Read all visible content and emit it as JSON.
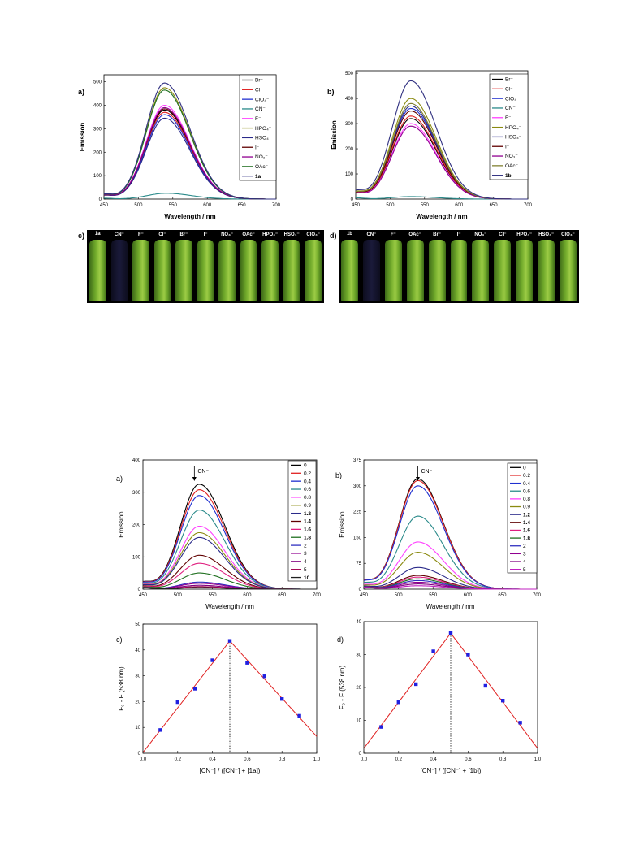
{
  "chart_data": [
    {
      "panel": "a)",
      "type": "line",
      "xlabel": "Wavelength / nm",
      "ylabel": "Emission",
      "xlim": [
        450,
        700
      ],
      "ylim": [
        0,
        530
      ],
      "xticks": [
        450,
        500,
        550,
        600,
        650,
        700
      ],
      "yticks": [
        0,
        100,
        200,
        300,
        400,
        500
      ],
      "legend": "top-right",
      "series": [
        {
          "name": "Br⁻",
          "color": "#000000",
          "peak_x": 538,
          "peak_y": 380
        },
        {
          "name": "Cl⁻",
          "color": "#e02020",
          "peak_x": 538,
          "peak_y": 370
        },
        {
          "name": "ClO₄⁻",
          "color": "#2030d0",
          "peak_x": 538,
          "peak_y": 360
        },
        {
          "name": "CN⁻",
          "color": "#2a8a8a",
          "peak_x": 540,
          "peak_y": 25
        },
        {
          "name": "F⁻",
          "color": "#ff40ff",
          "peak_x": 538,
          "peak_y": 400
        },
        {
          "name": "HPO₄⁻",
          "color": "#8a8a10",
          "peak_x": 538,
          "peak_y": 475
        },
        {
          "name": "HSO₄⁻",
          "color": "#2a2a8a",
          "peak_x": 538,
          "peak_y": 345
        },
        {
          "name": "I⁻",
          "color": "#600000",
          "peak_x": 538,
          "peak_y": 385
        },
        {
          "name": "NO₃⁻",
          "color": "#900090",
          "peak_x": 538,
          "peak_y": 390
        },
        {
          "name": "OAc⁻",
          "color": "#207020",
          "peak_x": 538,
          "peak_y": 465
        },
        {
          "name": "1a",
          "color": "#303080",
          "peak_x": 538,
          "peak_y": 495
        }
      ]
    },
    {
      "panel": "b)",
      "type": "line",
      "xlabel": "Wavelength / nm",
      "ylabel": "Emission",
      "xlim": [
        450,
        700
      ],
      "ylim": [
        0,
        510
      ],
      "xticks": [
        450,
        500,
        550,
        600,
        650,
        700
      ],
      "yticks": [
        0,
        100,
        200,
        300,
        400,
        500
      ],
      "legend": "top-right",
      "series": [
        {
          "name": "Br⁻",
          "color": "#000000",
          "peak_x": 530,
          "peak_y": 320
        },
        {
          "name": "Cl⁻",
          "color": "#e02020",
          "peak_x": 530,
          "peak_y": 330
        },
        {
          "name": "ClO₄⁻",
          "color": "#2030d0",
          "peak_x": 530,
          "peak_y": 360
        },
        {
          "name": "CN⁻",
          "color": "#2a8a8a",
          "peak_x": 530,
          "peak_y": 10
        },
        {
          "name": "F⁻",
          "color": "#ff40ff",
          "peak_x": 530,
          "peak_y": 300
        },
        {
          "name": "HPO₄⁻",
          "color": "#8a8a10",
          "peak_x": 530,
          "peak_y": 400
        },
        {
          "name": "HSO₄⁻",
          "color": "#2a2a8a",
          "peak_x": 530,
          "peak_y": 370
        },
        {
          "name": "I⁻",
          "color": "#600000",
          "peak_x": 530,
          "peak_y": 350
        },
        {
          "name": "NO₃⁻",
          "color": "#900090",
          "peak_x": 530,
          "peak_y": 290
        },
        {
          "name": "OAc⁻",
          "color": "#808030",
          "peak_x": 530,
          "peak_y": 380
        },
        {
          "name": "1b",
          "color": "#303080",
          "peak_x": 530,
          "peak_y": 470
        }
      ]
    },
    {
      "panel": "a)",
      "type": "line",
      "xlabel": "Wavelength / nm",
      "ylabel": "Emission",
      "xlim": [
        450,
        700
      ],
      "ylim": [
        0,
        400
      ],
      "xticks": [
        450,
        500,
        550,
        600,
        650,
        700
      ],
      "yticks": [
        0,
        100,
        200,
        300,
        400
      ],
      "legend": "top-right",
      "annotation": "CN⁻",
      "series": [
        {
          "name": "0",
          "color": "#000000",
          "peak_x": 531,
          "peak_y": 325
        },
        {
          "name": "0.2",
          "color": "#e02020",
          "peak_x": 531,
          "peak_y": 308
        },
        {
          "name": "0.4",
          "color": "#2030d0",
          "peak_x": 531,
          "peak_y": 290
        },
        {
          "name": "0.6",
          "color": "#2a8a8a",
          "peak_x": 531,
          "peak_y": 245
        },
        {
          "name": "0.8",
          "color": "#ff40ff",
          "peak_x": 531,
          "peak_y": 195
        },
        {
          "name": "0.9",
          "color": "#8a8a10",
          "peak_x": 531,
          "peak_y": 175
        },
        {
          "name": "1.2",
          "color": "#2a2a8a",
          "peak_x": 531,
          "peak_y": 160
        },
        {
          "name": "1.4",
          "color": "#600000",
          "peak_x": 531,
          "peak_y": 105
        },
        {
          "name": "1.6",
          "color": "#e02080",
          "peak_x": 531,
          "peak_y": 80
        },
        {
          "name": "1.8",
          "color": "#207020",
          "peak_x": 531,
          "peak_y": 50
        },
        {
          "name": "2",
          "color": "#3030c0",
          "peak_x": 531,
          "peak_y": 22
        },
        {
          "name": "3",
          "color": "#900090",
          "peak_x": 531,
          "peak_y": 18
        },
        {
          "name": "4",
          "color": "#800080",
          "peak_x": 531,
          "peak_y": 12
        },
        {
          "name": "5",
          "color": "#a00050",
          "peak_x": 531,
          "peak_y": 8
        },
        {
          "name": "10",
          "color": "#202020",
          "peak_x": 531,
          "peak_y": 5
        }
      ]
    },
    {
      "panel": "b)",
      "type": "line",
      "xlabel": "Wavelength / nm",
      "ylabel": "Emission",
      "xlim": [
        450,
        700
      ],
      "ylim": [
        0,
        375
      ],
      "xticks": [
        450,
        500,
        550,
        600,
        650,
        700
      ],
      "yticks": [
        0,
        75,
        150,
        225,
        300,
        375
      ],
      "legend": "top-right",
      "annotation": "CN⁻",
      "series": [
        {
          "name": "0",
          "color": "#000000",
          "peak_x": 528,
          "peak_y": 320
        },
        {
          "name": "0.2",
          "color": "#e02020",
          "peak_x": 528,
          "peak_y": 315
        },
        {
          "name": "0.4",
          "color": "#2030d0",
          "peak_x": 528,
          "peak_y": 300
        },
        {
          "name": "0.6",
          "color": "#2a8a8a",
          "peak_x": 528,
          "peak_y": 212
        },
        {
          "name": "0.8",
          "color": "#ff40ff",
          "peak_x": 528,
          "peak_y": 137
        },
        {
          "name": "0.9",
          "color": "#8a8a10",
          "peak_x": 528,
          "peak_y": 107
        },
        {
          "name": "1.2",
          "color": "#2a2a8a",
          "peak_x": 528,
          "peak_y": 63
        },
        {
          "name": "1.4",
          "color": "#600000",
          "peak_x": 528,
          "peak_y": 40
        },
        {
          "name": "1.6",
          "color": "#e02080",
          "peak_x": 528,
          "peak_y": 35
        },
        {
          "name": "1.8",
          "color": "#207020",
          "peak_x": 528,
          "peak_y": 30
        },
        {
          "name": "2",
          "color": "#3030c0",
          "peak_x": 528,
          "peak_y": 25
        },
        {
          "name": "3",
          "color": "#900090",
          "peak_x": 528,
          "peak_y": 20
        },
        {
          "name": "4",
          "color": "#800080",
          "peak_x": 528,
          "peak_y": 15
        },
        {
          "name": "5",
          "color": "#c020c0",
          "peak_x": 528,
          "peak_y": 10
        }
      ]
    },
    {
      "panel": "c)",
      "type": "scatter",
      "xlabel": "[CN⁻] / ([CN⁻] + [1a])",
      "ylabel": "F₀ - F (538 nm)",
      "xlim": [
        0.0,
        1.0
      ],
      "ylim": [
        0,
        50
      ],
      "xticks": [
        0.0,
        0.2,
        0.4,
        0.6,
        0.8,
        1.0
      ],
      "yticks": [
        0,
        10,
        20,
        30,
        40,
        50
      ],
      "points": [
        [
          0.1,
          9
        ],
        [
          0.2,
          19.8
        ],
        [
          0.3,
          25
        ],
        [
          0.4,
          36
        ],
        [
          0.5,
          43.5
        ],
        [
          0.6,
          35
        ],
        [
          0.7,
          29.8
        ],
        [
          0.8,
          21
        ],
        [
          0.9,
          14.5
        ]
      ],
      "fit_lines": [
        [
          [
            0.0,
            0.3
          ],
          [
            0.5,
            43.5
          ]
        ],
        [
          [
            0.5,
            43.5
          ],
          [
            1.0,
            6.5
          ]
        ]
      ],
      "dotted_x": 0.5
    },
    {
      "panel": "d)",
      "type": "scatter",
      "xlabel": "[CN⁻] / ([CN⁻] + [1b])",
      "ylabel": "F₀ - F (538 nm)",
      "xlim": [
        0.0,
        1.0
      ],
      "ylim": [
        0,
        40
      ],
      "xticks": [
        0.0,
        0.2,
        0.4,
        0.6,
        0.8,
        1.0
      ],
      "yticks": [
        0,
        10,
        20,
        30,
        40
      ],
      "points": [
        [
          0.1,
          8
        ],
        [
          0.2,
          15.5
        ],
        [
          0.3,
          21
        ],
        [
          0.4,
          31
        ],
        [
          0.5,
          36.5
        ],
        [
          0.6,
          30
        ],
        [
          0.7,
          20.5
        ],
        [
          0.8,
          16
        ],
        [
          0.9,
          9.3
        ]
      ],
      "fit_lines": [
        [
          [
            0.0,
            1.5
          ],
          [
            0.5,
            36.5
          ]
        ],
        [
          [
            0.5,
            36.5
          ],
          [
            1.0,
            1.5
          ]
        ]
      ],
      "dotted_x": 0.5
    }
  ],
  "vials": [
    {
      "panel": "c)",
      "labels": [
        "1a",
        "CN⁻",
        "F⁻",
        "Cl⁻",
        "Br⁻",
        "I⁻",
        "NO₃⁻",
        "OAc⁻",
        "HPO₄⁻",
        "HSO₄⁻",
        "ClO₄⁻"
      ],
      "dark": [
        false,
        true,
        false,
        false,
        false,
        false,
        false,
        false,
        false,
        false,
        false
      ]
    },
    {
      "panel": "d)",
      "labels": [
        "1b",
        "CN⁻",
        "F⁻",
        "OAc⁻",
        "Br⁻",
        "I⁻",
        "NO₃⁻",
        "Cl⁻",
        "HPO₄⁻",
        "HSO₄⁻",
        "ClO₄⁻"
      ],
      "dark": [
        false,
        true,
        false,
        false,
        false,
        false,
        false,
        false,
        false,
        false,
        false
      ]
    }
  ],
  "colors": {
    "vial_green": "#6fa82a",
    "vial_dark": "#1a1a3a",
    "fit_line": "#e02020",
    "points": "#2020e0"
  }
}
